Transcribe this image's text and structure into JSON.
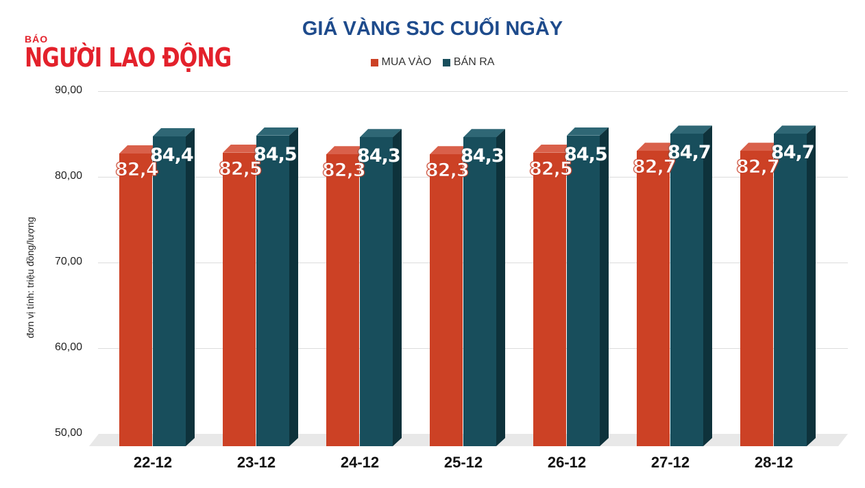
{
  "logo": {
    "small": "BÁO",
    "big": "NGƯỜI LAO ĐỘNG"
  },
  "colors": {
    "buy": "#cc4125",
    "buy_top": "#d9604a",
    "sell": "#184e5c",
    "sell_top": "#2f6775",
    "sell_side": "#0e323b",
    "title": "#1e4b8c"
  },
  "chart_data": {
    "type": "bar",
    "title": "GIÁ VÀNG SJC CUỐI NGÀY",
    "xlabel": "",
    "ylabel": "đơn vị tính: triệu đồng/lượng",
    "ylim": [
      50,
      90
    ],
    "yticks": [
      "90,00",
      "80,00",
      "70,00",
      "60,00",
      "50,00"
    ],
    "grid": true,
    "legend_position": "top",
    "categories": [
      "22-12",
      "23-12",
      "24-12",
      "25-12",
      "26-12",
      "27-12",
      "28-12"
    ],
    "series": [
      {
        "name": "MUA VÀO",
        "values": [
          82.4,
          82.5,
          82.3,
          82.3,
          82.5,
          82.7,
          82.7
        ],
        "labels": [
          "82,4",
          "82,5",
          "82,3",
          "82,3",
          "82,5",
          "82,7",
          "82,7"
        ]
      },
      {
        "name": "BÁN RA",
        "values": [
          84.4,
          84.5,
          84.3,
          84.3,
          84.5,
          84.7,
          84.7
        ],
        "labels": [
          "84,4",
          "84,5",
          "84,3",
          "84,3",
          "84,5",
          "84,7",
          "84,7"
        ]
      }
    ]
  }
}
